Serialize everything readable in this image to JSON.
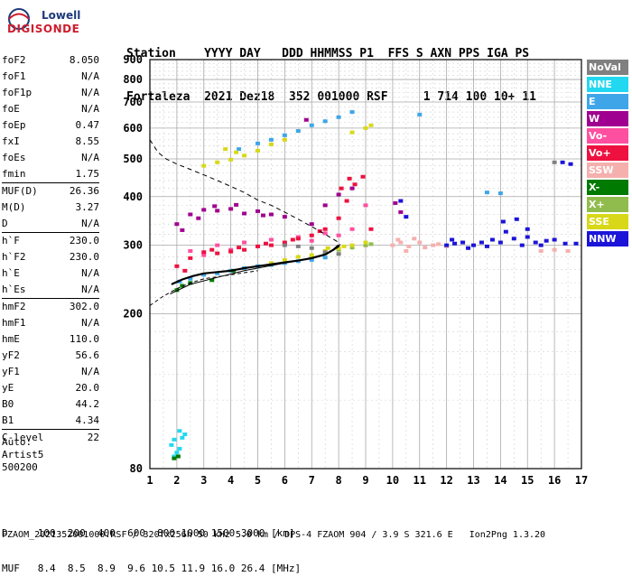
{
  "logo": {
    "line1": "Lowell",
    "line2": "DIGISONDE"
  },
  "header": {
    "line1": "Station    YYYY DAY   DDD HHMMSS P1  FFS S AXN PPS IGA PS",
    "line2": "Fortaleza  2021 Dez18  352 001000 RSF     1 714 100 10+ 11"
  },
  "params": [
    {
      "label": "foF2",
      "value": "8.050"
    },
    {
      "label": "foF1",
      "value": "N/A"
    },
    {
      "label": "foF1p",
      "value": "N/A"
    },
    {
      "label": "foE",
      "value": "N/A"
    },
    {
      "label": "foEp",
      "value": "0.47"
    },
    {
      "label": "fxI",
      "value": "8.55"
    },
    {
      "label": "foEs",
      "value": "N/A"
    },
    {
      "label": "fmin",
      "value": "1.75"
    },
    {
      "label": "MUF(D)",
      "value": "26.36"
    },
    {
      "label": "M(D)",
      "value": "3.27"
    },
    {
      "label": "D",
      "value": "N/A"
    },
    {
      "label": "h`F",
      "value": "230.0"
    },
    {
      "label": "h`F2",
      "value": "230.0"
    },
    {
      "label": "h`E",
      "value": "N/A"
    },
    {
      "label": "h`Es",
      "value": "N/A"
    },
    {
      "label": "hmF2",
      "value": "302.0"
    },
    {
      "label": "hmF1",
      "value": "N/A"
    },
    {
      "label": "hmE",
      "value": "110.0"
    },
    {
      "label": "yF2",
      "value": "56.6"
    },
    {
      "label": "yF1",
      "value": "N/A"
    },
    {
      "label": "yE",
      "value": "20.0"
    },
    {
      "label": "B0",
      "value": "44.2"
    },
    {
      "label": "B1",
      "value": "4.34"
    },
    {
      "label": "C-level",
      "value": "22"
    }
  ],
  "auto": {
    "line1": "Auto:",
    "line2": "Artist5",
    "line3": "500200"
  },
  "legend": [
    {
      "label": "NoVal",
      "color": "#808080"
    },
    {
      "label": "NNE",
      "color": "#22d8f0"
    },
    {
      "label": "E",
      "color": "#3ea6e8"
    },
    {
      "label": "W",
      "color": "#a0008f"
    },
    {
      "label": "Vo-",
      "color": "#ff4fa0"
    },
    {
      "label": "Vo+",
      "color": "#ee1140"
    },
    {
      "label": "SSW",
      "color": "#f5b0ae"
    },
    {
      "label": "X-",
      "color": "#007a00"
    },
    {
      "label": "X+",
      "color": "#8fbc4c"
    },
    {
      "label": "SSE",
      "color": "#d8d818"
    },
    {
      "label": "NNW",
      "color": "#1b14d8"
    }
  ],
  "bottom": {
    "d_line": "D     100  200  400  600  800 1000 1500 3000 [km]",
    "muf_line": "MUF   8.4  8.5  8.9  9.6 10.5 11.9 16.0 26.4 [MHz]"
  },
  "footer": "FZAOM_2021352001000.RSF / 320fx256h 50 kHz 5.0 km / DPS-4 FZAOM 904 / 3.9 S 321.6 E   Ion2Png 1.3.20",
  "chart_data": {
    "type": "scatter",
    "title": "",
    "xlabel": "",
    "ylabel": "",
    "xlim": [
      1,
      17
    ],
    "ylim": [
      80,
      900
    ],
    "y_scale": "log",
    "x_ticks": [
      1,
      2,
      3,
      4,
      5,
      6,
      7,
      8,
      9,
      10,
      11,
      12,
      13,
      14,
      15,
      16,
      17
    ],
    "y_ticks": [
      80,
      200,
      300,
      400,
      500,
      600,
      700,
      800,
      900
    ],
    "grid": true,
    "series": [
      {
        "name": "NNE",
        "color": "#22d8f0",
        "points": [
          [
            1.9,
            95
          ],
          [
            2.1,
            100
          ],
          [
            1.9,
            86
          ],
          [
            2.1,
            90
          ],
          [
            1.8,
            92
          ],
          [
            2.2,
            96
          ],
          [
            2.0,
            88
          ],
          [
            2.3,
            98
          ]
        ]
      },
      {
        "name": "E",
        "color": "#3ea6e8",
        "points": [
          [
            2.1,
            242
          ],
          [
            2.5,
            246
          ],
          [
            3.0,
            252
          ],
          [
            3.5,
            254
          ],
          [
            4.0,
            258
          ],
          [
            4.5,
            262
          ],
          [
            5.0,
            265
          ],
          [
            5.5,
            267
          ],
          [
            6.0,
            270
          ],
          [
            6.5,
            273
          ],
          [
            7.0,
            275
          ],
          [
            7.5,
            279
          ],
          [
            4.3,
            530
          ],
          [
            5.0,
            548
          ],
          [
            5.5,
            560
          ],
          [
            6.0,
            575
          ],
          [
            6.5,
            590
          ],
          [
            7.0,
            610
          ],
          [
            7.5,
            625
          ],
          [
            8.0,
            640
          ],
          [
            8.5,
            660
          ],
          [
            11.0,
            650
          ],
          [
            13.5,
            410
          ],
          [
            14.0,
            408
          ]
        ]
      },
      {
        "name": "W",
        "color": "#a0008f",
        "points": [
          [
            2.0,
            340
          ],
          [
            2.5,
            360
          ],
          [
            3.0,
            370
          ],
          [
            3.5,
            368
          ],
          [
            4.0,
            372
          ],
          [
            4.5,
            362
          ],
          [
            5.0,
            367
          ],
          [
            5.5,
            360
          ],
          [
            6.0,
            355
          ],
          [
            7.0,
            340
          ],
          [
            7.5,
            380
          ],
          [
            8.0,
            405
          ],
          [
            8.5,
            420
          ],
          [
            2.2,
            328
          ],
          [
            2.8,
            352
          ],
          [
            3.4,
            378
          ],
          [
            4.2,
            381
          ],
          [
            5.2,
            358
          ],
          [
            6.8,
            630
          ],
          [
            10.1,
            385
          ],
          [
            10.3,
            365
          ]
        ]
      },
      {
        "name": "Vo-",
        "color": "#ff4fa0",
        "points": [
          [
            2.5,
            290
          ],
          [
            3.5,
            300
          ],
          [
            4.5,
            305
          ],
          [
            5.5,
            310
          ],
          [
            6.5,
            315
          ],
          [
            7.5,
            322
          ],
          [
            8.5,
            330
          ],
          [
            9.0,
            380
          ],
          [
            3.0,
            283
          ],
          [
            4.0,
            292
          ],
          [
            5.0,
            298
          ],
          [
            6.0,
            303
          ],
          [
            7.0,
            308
          ],
          [
            8.0,
            318
          ]
        ]
      },
      {
        "name": "Vo+",
        "color": "#ee1140",
        "points": [
          [
            2.0,
            265
          ],
          [
            2.5,
            278
          ],
          [
            3.0,
            288
          ],
          [
            3.5,
            286
          ],
          [
            4.0,
            289
          ],
          [
            4.5,
            292
          ],
          [
            5.0,
            298
          ],
          [
            5.5,
            300
          ],
          [
            6.0,
            305
          ],
          [
            6.5,
            312
          ],
          [
            7.0,
            318
          ],
          [
            7.5,
            330
          ],
          [
            8.0,
            352
          ],
          [
            8.3,
            390
          ],
          [
            8.6,
            430
          ],
          [
            8.9,
            450
          ],
          [
            9.2,
            330
          ],
          [
            9.0,
            300
          ],
          [
            2.3,
            258
          ],
          [
            3.3,
            292
          ],
          [
            4.3,
            296
          ],
          [
            5.3,
            303
          ],
          [
            6.3,
            310
          ],
          [
            7.3,
            326
          ],
          [
            8.1,
            420
          ],
          [
            8.4,
            445
          ]
        ]
      },
      {
        "name": "SSW",
        "color": "#f5b0ae",
        "points": [
          [
            10.0,
            300
          ],
          [
            10.3,
            305
          ],
          [
            10.6,
            298
          ],
          [
            11.0,
            305
          ],
          [
            11.5,
            300
          ],
          [
            12.0,
            298
          ],
          [
            15.5,
            290
          ],
          [
            16.0,
            292
          ],
          [
            16.5,
            290
          ],
          [
            10.2,
            310
          ],
          [
            10.5,
            290
          ],
          [
            10.8,
            312
          ],
          [
            11.2,
            296
          ],
          [
            11.7,
            302
          ]
        ]
      },
      {
        "name": "X-",
        "color": "#007a00",
        "points": [
          [
            2.0,
            230
          ],
          [
            2.2,
            236
          ],
          [
            2.5,
            240
          ],
          [
            1.9,
            85
          ],
          [
            2.05,
            86
          ],
          [
            3.3,
            244
          ],
          [
            4.1,
            258
          ]
        ]
      },
      {
        "name": "X+",
        "color": "#8fbc4c",
        "points": [
          [
            7.0,
            280
          ],
          [
            7.5,
            286
          ],
          [
            8.0,
            292
          ],
          [
            8.5,
            296
          ],
          [
            9.0,
            300
          ],
          [
            9.2,
            302
          ]
        ]
      },
      {
        "name": "SSE",
        "color": "#d8d818",
        "points": [
          [
            3.0,
            480
          ],
          [
            3.5,
            490
          ],
          [
            4.0,
            498
          ],
          [
            4.5,
            510
          ],
          [
            5.0,
            525
          ],
          [
            5.5,
            545
          ],
          [
            6.0,
            560
          ],
          [
            8.5,
            585
          ],
          [
            9.0,
            600
          ],
          [
            9.2,
            610
          ],
          [
            5.5,
            270
          ],
          [
            6.0,
            275
          ],
          [
            6.5,
            280
          ],
          [
            7.0,
            283
          ],
          [
            7.5,
            290
          ],
          [
            8.0,
            295
          ],
          [
            8.5,
            300
          ],
          [
            9.0,
            305
          ],
          [
            3.8,
            530
          ],
          [
            4.2,
            520
          ],
          [
            7.6,
            295
          ],
          [
            8.2,
            298
          ]
        ]
      },
      {
        "name": "NNW",
        "color": "#1b14d8",
        "points": [
          [
            12.0,
            300
          ],
          [
            12.3,
            303
          ],
          [
            12.6,
            305
          ],
          [
            13.0,
            300
          ],
          [
            13.3,
            305
          ],
          [
            13.7,
            310
          ],
          [
            14.0,
            305
          ],
          [
            14.5,
            312
          ],
          [
            15.0,
            315
          ],
          [
            15.3,
            305
          ],
          [
            15.7,
            308
          ],
          [
            16.0,
            310
          ],
          [
            16.4,
            303
          ],
          [
            16.8,
            303
          ],
          [
            10.3,
            390
          ],
          [
            10.5,
            355
          ],
          [
            14.1,
            345
          ],
          [
            14.6,
            350
          ],
          [
            15.0,
            330
          ],
          [
            16.3,
            490
          ],
          [
            16.6,
            485
          ],
          [
            12.2,
            310
          ],
          [
            12.8,
            295
          ],
          [
            13.5,
            298
          ],
          [
            14.2,
            325
          ],
          [
            14.8,
            300
          ],
          [
            15.5,
            300
          ]
        ]
      },
      {
        "name": "NoVal",
        "color": "#808080",
        "points": [
          [
            6.0,
            300
          ],
          [
            6.5,
            298
          ],
          [
            7.0,
            295
          ],
          [
            7.5,
            288
          ],
          [
            8.0,
            285
          ],
          [
            16.0,
            490
          ]
        ]
      }
    ],
    "fitted_trace": {
      "label": "virtual height trace",
      "x": [
        1.8,
        2.2,
        2.6,
        3.0,
        3.5,
        4.0,
        4.5,
        5.0,
        5.5,
        6.0,
        6.5,
        7.0,
        7.5,
        7.8,
        8.0
      ],
      "y": [
        238,
        245,
        250,
        254,
        256,
        258,
        262,
        265,
        268,
        271,
        274,
        278,
        284,
        292,
        300
      ]
    },
    "profile_solid": {
      "x": [
        1.75,
        2.5,
        3.5,
        4.5,
        5.5,
        6.5,
        7.0,
        7.5,
        7.8,
        8.0,
        8.05
      ],
      "y": [
        225,
        238,
        248,
        258,
        266,
        274,
        279,
        285,
        291,
        297,
        302
      ]
    },
    "profile_dashed": {
      "x": [
        1.0,
        1.3,
        1.6,
        2.0,
        2.5,
        3.0,
        3.5,
        4.0,
        4.5,
        5.0,
        5.5,
        6.0,
        6.5,
        7.0,
        7.5,
        8.0
      ],
      "y": [
        560,
        520,
        500,
        485,
        470,
        455,
        440,
        425,
        410,
        392,
        380,
        365,
        350,
        335,
        320,
        305
      ]
    },
    "profile_lower": {
      "x": [
        1.0,
        1.5,
        2.0,
        2.5,
        3.0,
        4.0,
        5.0
      ],
      "y": [
        210,
        222,
        232,
        240,
        246,
        252,
        258
      ]
    }
  }
}
